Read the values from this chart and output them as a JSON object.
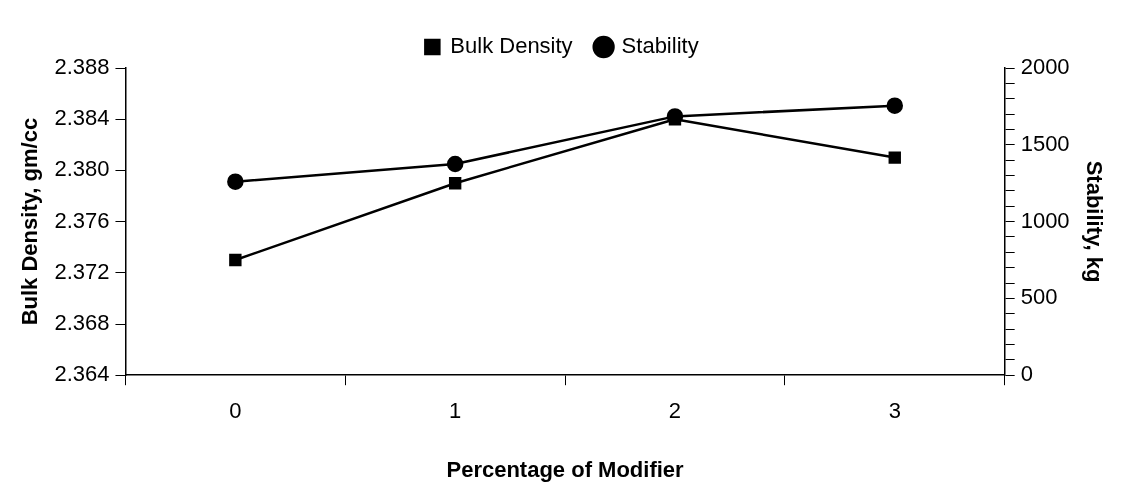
{
  "chart_data": {
    "type": "line",
    "xlabel": "Percentage of Modifier",
    "ylabel": "Bulk Density, gm/cc",
    "y2label": "Stability, kg",
    "categories": [
      "0",
      "1",
      "2",
      "3"
    ],
    "series": [
      {
        "name": "Bulk Density",
        "color": "#000000",
        "values": [
          2.373,
          2.379,
          2.384,
          2.381
        ],
        "marker": "square"
      },
      {
        "name": "Stability",
        "color": "#000000",
        "values": [
          1260,
          1375,
          1685,
          1755
        ],
        "marker": "circle",
        "axis": "y2"
      }
    ],
    "ylim": [
      2.364,
      2.388
    ],
    "yticks": [
      2.364,
      2.368,
      2.372,
      2.376,
      {
        "value": 2.38,
        "label": "2.380"
      },
      2.384,
      2.388
    ],
    "y2lim": [
      0,
      2000
    ],
    "y2ticks": [
      0,
      {
        "value": 100,
        "label": null
      },
      {
        "value": 200,
        "label": null
      },
      {
        "value": 300,
        "label": null
      },
      {
        "value": 400,
        "label": null
      },
      500,
      {
        "value": 600,
        "label": null
      },
      {
        "value": 700,
        "label": null
      },
      {
        "value": 800,
        "label": null
      },
      {
        "value": 900,
        "label": null
      },
      1000,
      {
        "value": 1100,
        "label": null
      },
      {
        "value": 1200,
        "label": null
      },
      {
        "value": 1300,
        "label": null
      },
      {
        "value": 1400,
        "label": null
      },
      1500,
      {
        "value": 1600,
        "label": null
      },
      {
        "value": 1700,
        "label": null
      },
      {
        "value": 1800,
        "label": null
      },
      {
        "value": 1900,
        "label": null
      },
      2000
    ],
    "legend": "top",
    "grid": false,
    "line_style": "solid"
  }
}
